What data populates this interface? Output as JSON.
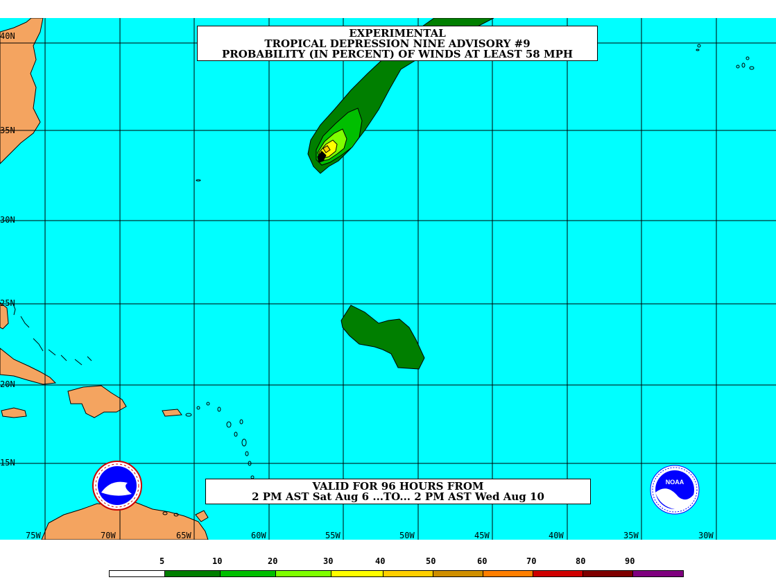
{
  "title": {
    "line1": "EXPERIMENTAL",
    "line2": "TROPICAL DEPRESSION NINE ADVISORY #9",
    "line3": "PROBABILITY (IN PERCENT) OF WINDS AT LEAST 58 MPH"
  },
  "validity": {
    "line1": "VALID FOR 96 HOURS FROM",
    "line2": "2 PM AST Sat Aug 6 ...TO... 2 PM AST Wed Aug 10"
  },
  "latitude_labels": [
    "40N",
    "35N",
    "30N",
    "25N",
    "20N",
    "15N"
  ],
  "longitude_labels": [
    "75W",
    "70W",
    "65W",
    "60W",
    "55W",
    "50W",
    "45W",
    "40W",
    "35W",
    "30W"
  ],
  "legend": {
    "labels": [
      "5",
      "10",
      "20",
      "30",
      "40",
      "50",
      "60",
      "70",
      "80",
      "90"
    ],
    "colors": [
      "#ffffff",
      "#007f00",
      "#00bf00",
      "#7fff00",
      "#ffff00",
      "#ffcf00",
      "#cf8f00",
      "#ff7f00",
      "#cf0000",
      "#7f0000",
      "#7f007f"
    ]
  },
  "colors": {
    "ocean": "#00ffff",
    "land": "#f4a460",
    "grid": "#000000"
  },
  "logos": {
    "left": "national-weather-service-logo",
    "right": "noaa-logo"
  },
  "logo_text": {
    "noaa": "NOAA"
  }
}
